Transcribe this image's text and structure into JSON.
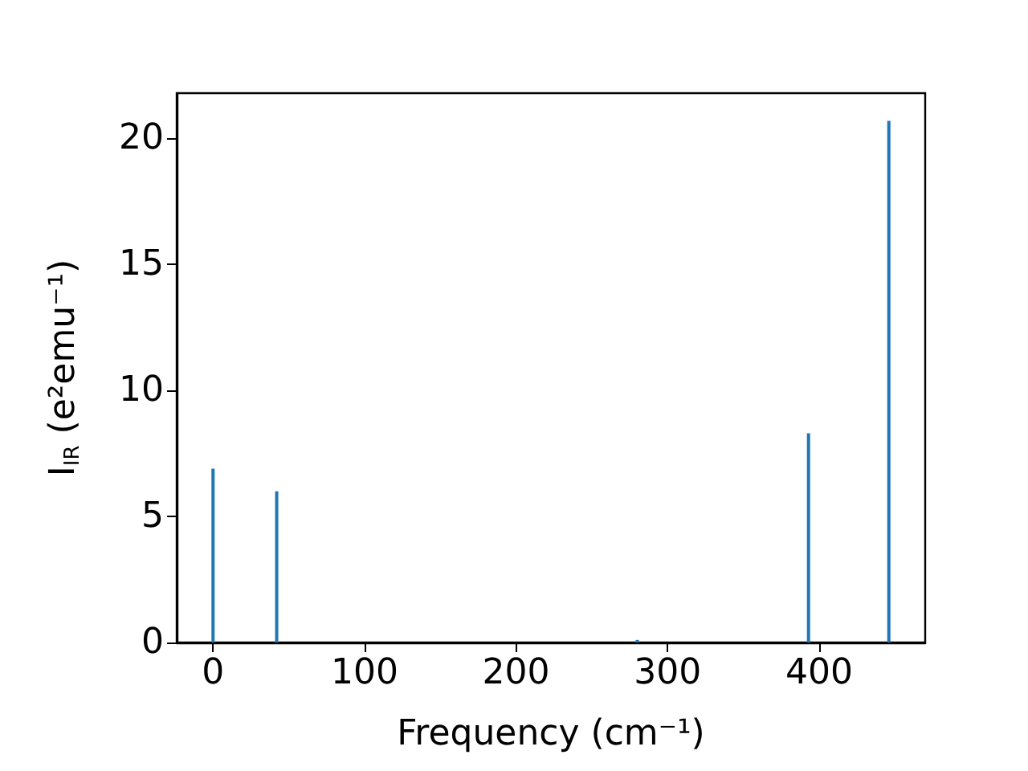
{
  "chart_data": {
    "type": "bar",
    "xlabel": "Frequency (cm⁻¹)",
    "ylabel": "I$_{IR}$ (e²emu⁻¹)",
    "x": [
      0,
      42,
      280,
      393,
      446
    ],
    "series": [
      {
        "color": "#1f77b4",
        "values": [
          6.9,
          6.0,
          0.1,
          8.3,
          20.7
        ]
      }
    ],
    "xlim": [
      -24,
      470
    ],
    "xticks": [
      0,
      100,
      200,
      300,
      400
    ],
    "ylim": [
      0,
      21.8
    ],
    "yticks": [
      0,
      5,
      10,
      15,
      20
    ],
    "grid": false
  }
}
